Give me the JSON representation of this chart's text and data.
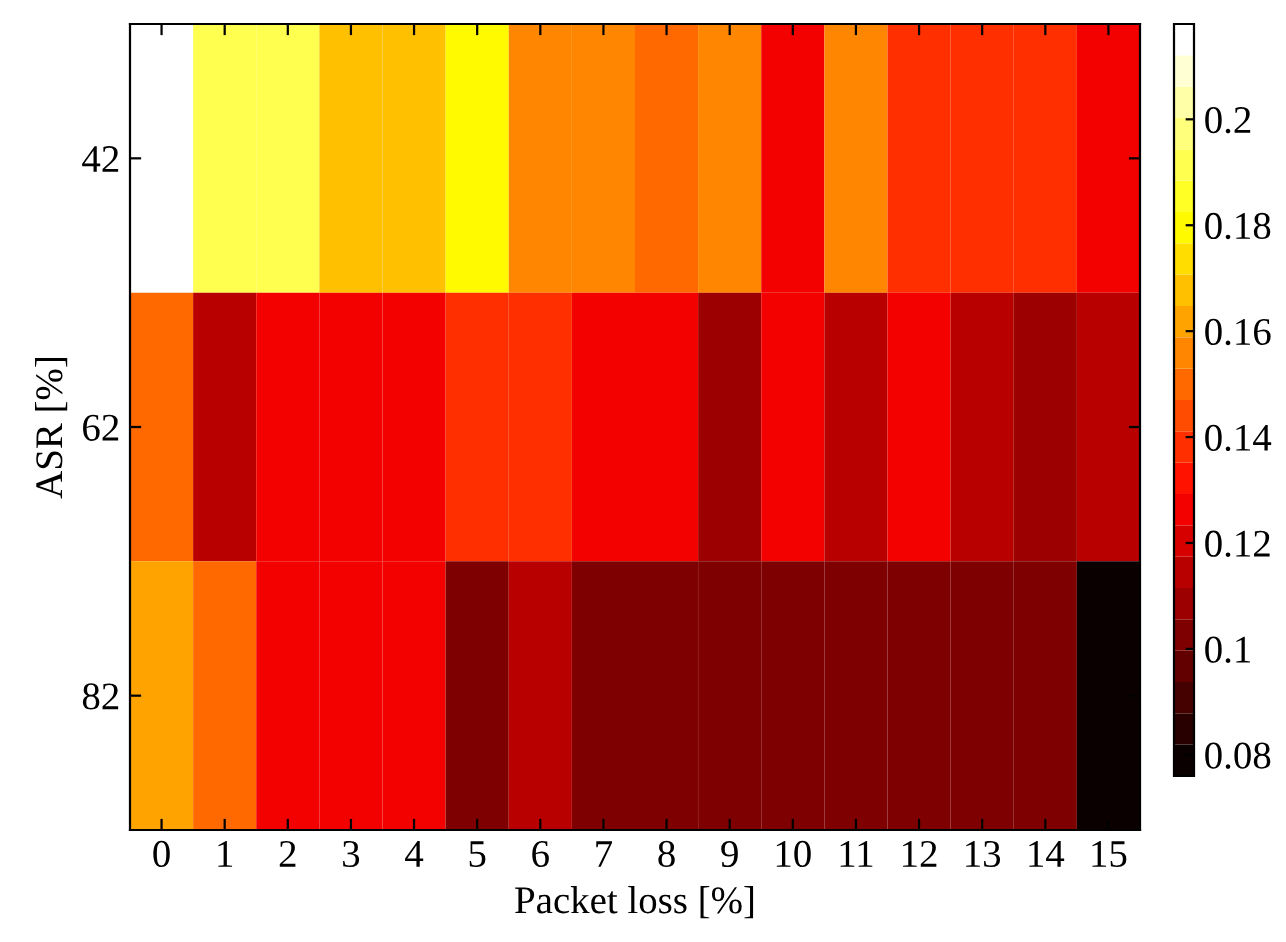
{
  "chart_data": {
    "type": "heatmap",
    "xlabel": "Packet loss [%]",
    "ylabel": "ASR [%]",
    "categories": [
      "0",
      "1",
      "2",
      "3",
      "4",
      "5",
      "6",
      "7",
      "8",
      "9",
      "10",
      "11",
      "12",
      "13",
      "14",
      "15"
    ],
    "y_categories": [
      "42",
      "62",
      "82"
    ],
    "cells": [
      [
        0.215,
        0.191,
        0.191,
        0.169,
        0.169,
        0.178,
        0.156,
        0.156,
        0.149,
        0.156,
        0.129,
        0.156,
        0.136,
        0.136,
        0.136,
        0.129
      ],
      [
        0.149,
        0.116,
        0.129,
        0.129,
        0.129,
        0.136,
        0.136,
        0.129,
        0.129,
        0.11,
        0.129,
        0.116,
        0.129,
        0.116,
        0.11,
        0.116
      ],
      [
        0.163,
        0.149,
        0.129,
        0.129,
        0.129,
        0.103,
        0.116,
        0.103,
        0.103,
        0.103,
        0.103,
        0.103,
        0.103,
        0.103,
        0.103,
        0.078
      ]
    ],
    "clim": [
      0.076,
      0.218
    ],
    "cticks": [
      0.08,
      0.1,
      0.12,
      0.14,
      0.16,
      0.18,
      0.2
    ]
  }
}
